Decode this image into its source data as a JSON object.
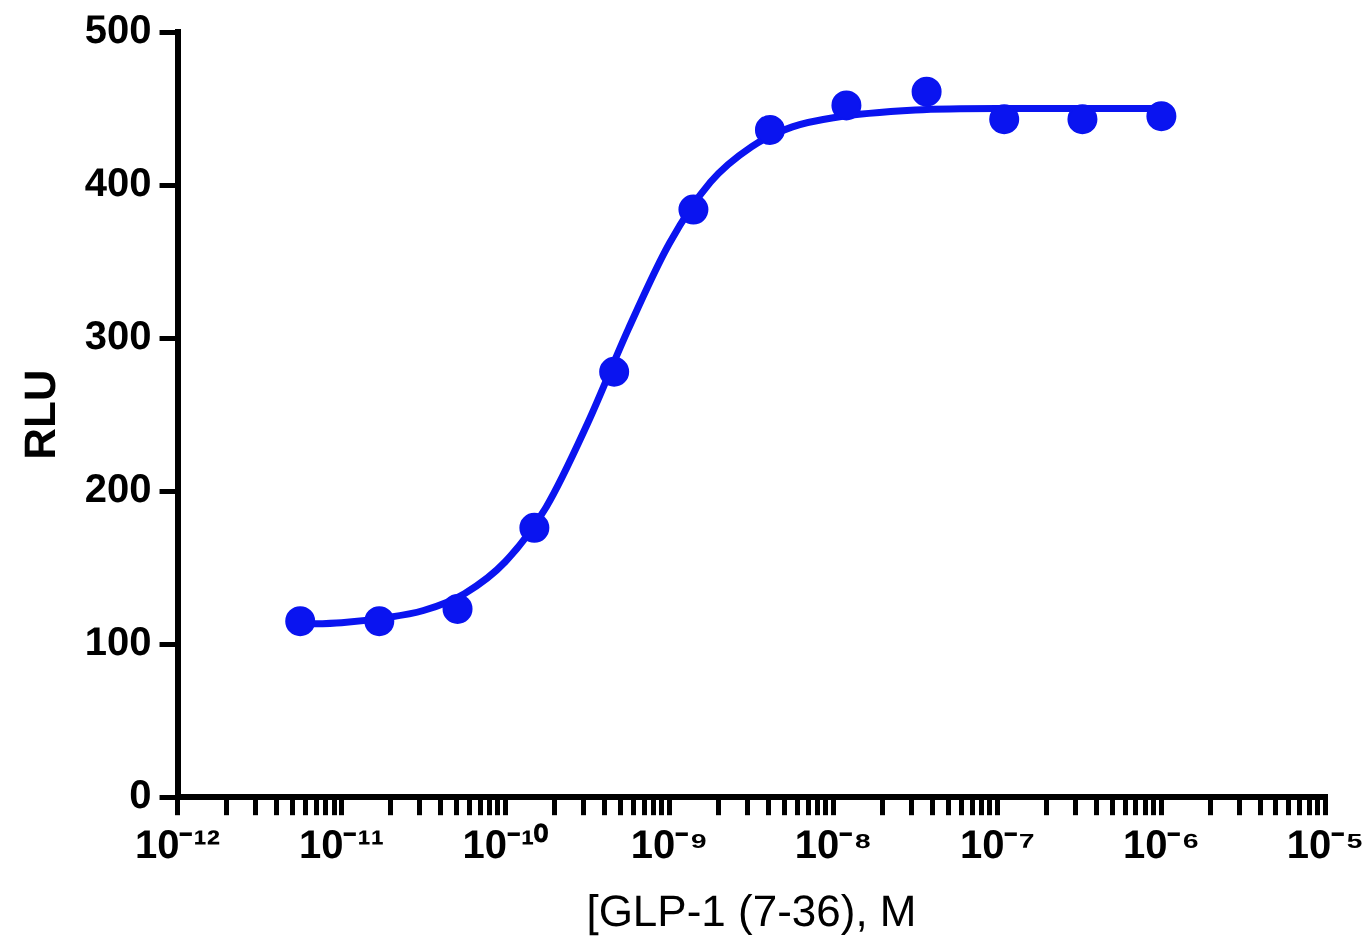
{
  "chart_data": {
    "type": "scatter",
    "xlabel": "[GLP-1 (7-36), M",
    "ylabel": "RLU",
    "log": "x",
    "grid": false,
    "legend": false,
    "line_style": "solid",
    "xlim": [
      1e-12,
      1e-05
    ],
    "ylim": [
      0,
      500
    ],
    "yticks": [
      0,
      100,
      200,
      300,
      400,
      500
    ],
    "xticks": [
      {
        "value": 1e-12,
        "label": "10⁻¹²"
      },
      {
        "value": 2e-12,
        "label": null
      },
      {
        "value": 3e-12,
        "label": null
      },
      {
        "value": 4e-12,
        "label": null
      },
      {
        "value": 5e-12,
        "label": null
      },
      {
        "value": 6e-12,
        "label": null
      },
      {
        "value": 7e-12,
        "label": null
      },
      {
        "value": 8e-12,
        "label": null
      },
      {
        "value": 9e-12,
        "label": null
      },
      {
        "value": 1e-11,
        "label": "10⁻¹¹"
      },
      {
        "value": 2e-11,
        "label": null
      },
      {
        "value": 3e-11,
        "label": null
      },
      {
        "value": 4e-11,
        "label": null
      },
      {
        "value": 5e-11,
        "label": null
      },
      {
        "value": 6e-11,
        "label": null
      },
      {
        "value": 7e-11,
        "label": null
      },
      {
        "value": 8e-11,
        "label": null
      },
      {
        "value": 9e-11,
        "label": null
      },
      {
        "value": 1e-10,
        "label": "10⁻¹⁰"
      },
      {
        "value": 2e-10,
        "label": null
      },
      {
        "value": 3e-10,
        "label": null
      },
      {
        "value": 4e-10,
        "label": null
      },
      {
        "value": 5e-10,
        "label": null
      },
      {
        "value": 6e-10,
        "label": null
      },
      {
        "value": 7e-10,
        "label": null
      },
      {
        "value": 8e-10,
        "label": null
      },
      {
        "value": 9e-10,
        "label": null
      },
      {
        "value": 1e-09,
        "label": "10⁻⁹"
      },
      {
        "value": 2e-09,
        "label": null
      },
      {
        "value": 3e-09,
        "label": null
      },
      {
        "value": 4e-09,
        "label": null
      },
      {
        "value": 5e-09,
        "label": null
      },
      {
        "value": 6e-09,
        "label": null
      },
      {
        "value": 7e-09,
        "label": null
      },
      {
        "value": 8e-09,
        "label": null
      },
      {
        "value": 9e-09,
        "label": null
      },
      {
        "value": 1e-08,
        "label": "10⁻⁸"
      },
      {
        "value": 2e-08,
        "label": null
      },
      {
        "value": 3e-08,
        "label": null
      },
      {
        "value": 4e-08,
        "label": null
      },
      {
        "value": 5e-08,
        "label": null
      },
      {
        "value": 6e-08,
        "label": null
      },
      {
        "value": 7e-08,
        "label": null
      },
      {
        "value": 8e-08,
        "label": null
      },
      {
        "value": 9e-08,
        "label": null
      },
      {
        "value": 1e-07,
        "label": "10⁻⁷"
      },
      {
        "value": 2e-07,
        "label": null
      },
      {
        "value": 3e-07,
        "label": null
      },
      {
        "value": 4e-07,
        "label": null
      },
      {
        "value": 5e-07,
        "label": null
      },
      {
        "value": 6e-07,
        "label": null
      },
      {
        "value": 7e-07,
        "label": null
      },
      {
        "value": 8e-07,
        "label": null
      },
      {
        "value": 9e-07,
        "label": null
      },
      {
        "value": 1e-06,
        "label": "10⁻⁶"
      },
      {
        "value": 2e-06,
        "label": null
      },
      {
        "value": 3e-06,
        "label": null
      },
      {
        "value": 4e-06,
        "label": null
      },
      {
        "value": 5e-06,
        "label": null
      },
      {
        "value": 6e-06,
        "label": null
      },
      {
        "value": 7e-06,
        "label": null
      },
      {
        "value": 8e-06,
        "label": null
      },
      {
        "value": 9e-06,
        "label": null
      },
      {
        "value": 1e-05,
        "label": "10⁻⁵"
      }
    ],
    "series": [
      {
        "type": "line",
        "marker": "none",
        "color": "#0a14f0",
        "x": [
          5.6e-12,
          1e-11,
          1.78e-11,
          3.16e-11,
          5.62e-11,
          1e-10,
          1.78e-10,
          3.16e-10,
          5.62e-10,
          1e-09,
          1.78e-09,
          3.16e-09,
          5.62e-09,
          1e-08,
          3.16e-08,
          1e-07,
          1e-06
        ],
        "values": [
          113,
          114,
          117,
          122,
          133,
          154,
          190,
          244,
          306,
          362,
          402,
          425,
          438,
          444,
          449,
          450,
          450
        ]
      },
      {
        "type": "scatter",
        "marker": "circle",
        "color": "#0a14f0",
        "x": [
          5.6e-12,
          1.7e-11,
          5.1e-11,
          1.5e-10,
          4.6e-10,
          1.4e-09,
          4.1e-09,
          1.2e-08,
          3.7e-08,
          1.1e-07,
          3.3e-07,
          1e-06
        ],
        "values": [
          115,
          115,
          123,
          176,
          278,
          384,
          436,
          452,
          461,
          443,
          443,
          445
        ]
      }
    ]
  }
}
